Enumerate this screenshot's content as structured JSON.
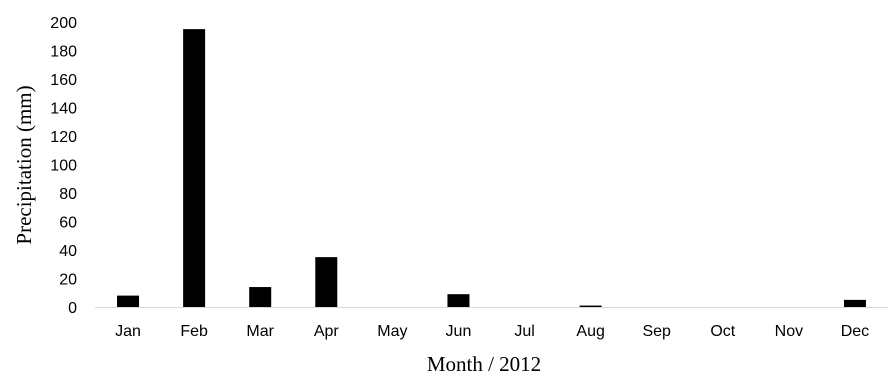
{
  "chart_data": {
    "type": "bar",
    "categories": [
      "Jan",
      "Feb",
      "Mar",
      "Apr",
      "May",
      "Jun",
      "Jul",
      "Aug",
      "Sep",
      "Oct",
      "Nov",
      "Dec"
    ],
    "values": [
      8,
      195,
      14,
      35,
      0,
      9,
      0,
      1,
      0,
      0,
      0,
      5
    ],
    "title": "",
    "xlabel": "Month  / 2012",
    "ylabel": "Precipitation (mm)",
    "ylim": [
      0,
      200
    ],
    "yticks": [
      0,
      20,
      40,
      60,
      80,
      100,
      120,
      140,
      160,
      180,
      200
    ],
    "grid": false,
    "legend": "none",
    "bar_color": "#000000",
    "axis_color": "#d9d9d9"
  }
}
